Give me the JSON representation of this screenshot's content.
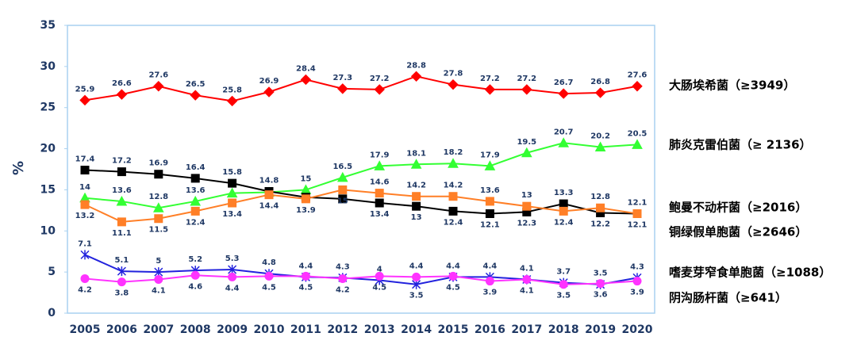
{
  "chart_data": {
    "type": "line",
    "y_label": "%",
    "categories": [
      "2005",
      "2006",
      "2007",
      "2008",
      "2009",
      "2010",
      "2011",
      "2012",
      "2013",
      "2014",
      "2015",
      "2016",
      "2017",
      "2018",
      "2019",
      "2020"
    ],
    "ylim": [
      0,
      35
    ],
    "yticks": [
      0,
      5,
      10,
      15,
      20,
      25,
      30,
      35
    ],
    "series": [
      {
        "name": "大肠埃希菌（≥3949）",
        "color": "#ff0000",
        "marker": "diamond",
        "values": [
          25.9,
          26.6,
          27.6,
          26.5,
          25.8,
          26.9,
          28.4,
          27.3,
          27.2,
          28.8,
          27.8,
          27.2,
          27.2,
          26.7,
          26.8,
          27.6
        ]
      },
      {
        "name": "肺炎克雷伯菌（≥ 2136）",
        "color": "#33ff33",
        "marker": "triangle",
        "values": [
          14,
          13.6,
          12.8,
          13.6,
          14.6,
          14.7,
          15,
          16.5,
          17.9,
          18.1,
          18.2,
          17.9,
          19.5,
          20.7,
          20.2,
          20.5
        ],
        "value_labels": [
          "14",
          "13.6",
          "12.8",
          "13.6",
          null,
          null,
          "15",
          "16.5",
          "17.9",
          "18.1",
          "18.2",
          "17.9",
          "19.5",
          "20.7",
          "20.2",
          "20.5"
        ]
      },
      {
        "name": "鲍曼不动杆菌（≥2016）",
        "color": "#000000",
        "marker": "square",
        "values": [
          17.4,
          17.2,
          16.9,
          16.4,
          15.8,
          14.8,
          14.1,
          13.9,
          13.4,
          13,
          12.4,
          12.1,
          12.3,
          13.3,
          12.2,
          12.1
        ],
        "value_labels": [
          "17.4",
          "17.2",
          "16.9",
          "16.4",
          "15.8",
          "14.8",
          null,
          null,
          "13.4",
          "13",
          "12.4",
          "12.1",
          "12.3",
          "13.3",
          "12.2",
          "12.1"
        ]
      },
      {
        "name": "铜绿假单胞菌（≥2646）",
        "color": "#ff7f27",
        "marker": "square",
        "values": [
          13.2,
          11.1,
          11.5,
          12.4,
          13.4,
          14.4,
          13.9,
          15,
          14.6,
          14.2,
          14.2,
          13.6,
          13,
          12.4,
          12.8,
          12.1
        ]
      },
      {
        "name": "嗜麦芽窄食单胞菌（≥1088）",
        "color": "#2222dd",
        "marker": "star",
        "values": [
          7.1,
          5.1,
          5,
          5.2,
          5.3,
          4.8,
          4.4,
          4.3,
          4,
          3.5,
          4.4,
          4.4,
          4.1,
          3.7,
          3.5,
          4.3
        ]
      },
      {
        "name": "阴沟肠杆菌（≥641）",
        "color": "#ff33ff",
        "marker": "circle",
        "values": [
          4.2,
          3.8,
          4.1,
          4.6,
          4.4,
          4.5,
          4.5,
          4.2,
          4.5,
          4.4,
          4.5,
          3.9,
          4.1,
          3.5,
          3.6,
          3.9
        ]
      }
    ]
  }
}
